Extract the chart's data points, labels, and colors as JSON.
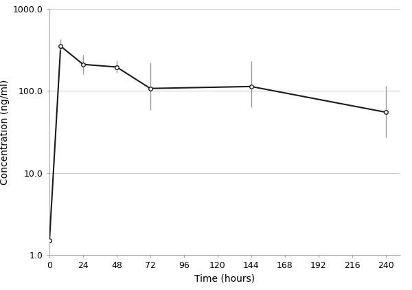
{
  "x": [
    0,
    8,
    24,
    48,
    72,
    144,
    240
  ],
  "y": [
    1.5,
    350,
    210,
    195,
    107,
    113,
    55
  ],
  "yerr_upper": [
    0,
    75,
    65,
    38,
    115,
    115,
    60
  ],
  "yerr_lower": [
    0,
    35,
    50,
    28,
    48,
    50,
    28
  ],
  "xlabel": "Time (hours)",
  "ylabel": "Concentration (ng/ml)",
  "ylim_log": [
    1.0,
    1000.0
  ],
  "xlim": [
    0,
    250
  ],
  "xticks": [
    0,
    24,
    48,
    72,
    96,
    120,
    144,
    168,
    192,
    216,
    240
  ],
  "yticks_major": [
    1.0,
    10.0,
    100.0,
    1000.0
  ],
  "ytick_labels": [
    "1.0",
    "10.0",
    "100.0",
    "1000.0"
  ],
  "line_color": "#1a1a1a",
  "marker": "o",
  "marker_facecolor": "#ffffff",
  "marker_edgecolor": "#1a1a1a",
  "marker_size": 4,
  "errorbar_color": "#999999",
  "grid_color": "#d0d0d0",
  "background_color": "#ffffff",
  "title": ""
}
